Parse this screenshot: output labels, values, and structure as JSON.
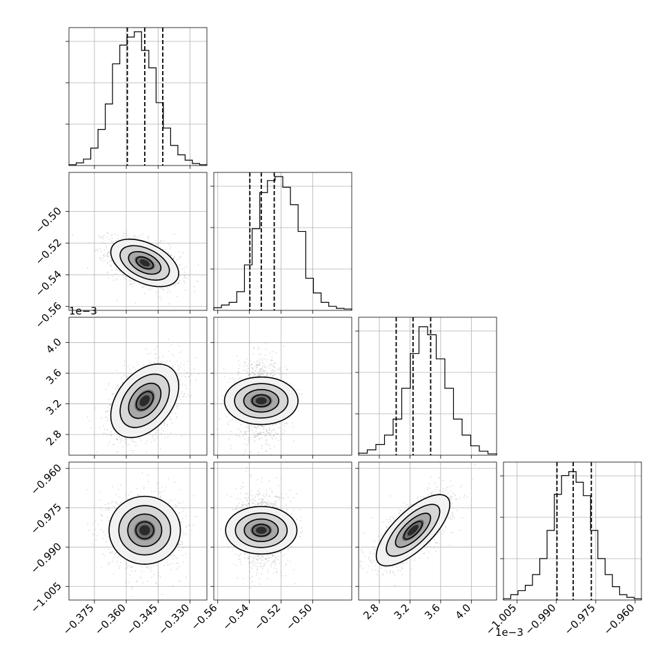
{
  "chart_data": {
    "type": "corner",
    "grid": true,
    "n_params": 4,
    "params": [
      {
        "range": [
          -0.387,
          -0.322
        ],
        "ticks": [
          -0.375,
          -0.36,
          -0.345,
          -0.33
        ],
        "tick_labels": [
          "−0.375",
          "−0.360",
          "−0.345",
          "−0.330"
        ],
        "offset_label": "",
        "quantiles": [
          -0.3595,
          -0.3513,
          -0.3428
        ],
        "histogram": [
          0.006,
          0.02,
          0.048,
          0.13,
          0.27,
          0.46,
          0.76,
          0.9,
          0.96,
          1.0,
          0.86,
          0.73,
          0.47,
          0.28,
          0.15,
          0.08,
          0.04,
          0.015,
          0.006
        ]
      },
      {
        "range": [
          -0.5625,
          -0.4753
        ],
        "ticks": [
          -0.56,
          -0.54,
          -0.52,
          -0.5
        ],
        "tick_labels": [
          "−0.56",
          "−0.54",
          "−0.52",
          "−0.50"
        ],
        "offset_label": "",
        "quantiles": [
          -0.5397,
          -0.5325,
          -0.5243
        ],
        "histogram": [
          0.02,
          0.04,
          0.06,
          0.14,
          0.34,
          0.61,
          0.88,
          0.97,
          1.0,
          0.92,
          0.79,
          0.59,
          0.24,
          0.13,
          0.06,
          0.03,
          0.015,
          0.01
        ]
      },
      {
        "range": [
          2.53,
          4.33
        ],
        "ticks": [
          2.8,
          3.2,
          3.6,
          4.0
        ],
        "tick_labels": [
          "2.8",
          "3.2",
          "3.6",
          "4.0"
        ],
        "offset_label": "1e−3",
        "quantiles": [
          3.02,
          3.24,
          3.47
        ],
        "histogram": [
          0.015,
          0.04,
          0.08,
          0.15,
          0.27,
          0.5,
          0.76,
          0.96,
          0.9,
          0.72,
          0.5,
          0.27,
          0.15,
          0.07,
          0.03,
          0.01
        ]
      },
      {
        "range": [
          -1.0102,
          -0.9576
        ],
        "ticks": [
          -1.005,
          -0.99,
          -0.975,
          -0.96
        ],
        "tick_labels": [
          "−1.005",
          "−0.990",
          "−0.975",
          "−0.960"
        ],
        "offset_label": "",
        "quantiles": [
          -0.9898,
          -0.9836,
          -0.9767
        ],
        "histogram": [
          0.01,
          0.04,
          0.07,
          0.11,
          0.19,
          0.31,
          0.52,
          0.79,
          0.93,
          0.96,
          0.88,
          0.78,
          0.52,
          0.31,
          0.19,
          0.1,
          0.04,
          0.02,
          0.01
        ]
      }
    ],
    "pairs": [
      {
        "x": 0,
        "y": 1,
        "center": [
          -0.3513,
          -0.5325
        ],
        "sd": [
          0.008,
          0.0075
        ],
        "rho": -0.45
      },
      {
        "x": 0,
        "y": 2,
        "center": [
          -0.3513,
          3.24
        ],
        "sd": [
          0.008,
          0.24
        ],
        "rho": 0.4
      },
      {
        "x": 1,
        "y": 2,
        "center": [
          -0.5325,
          3.24
        ],
        "sd": [
          0.0075,
          0.24
        ],
        "rho": 0.0
      },
      {
        "x": 0,
        "y": 3,
        "center": [
          -0.3513,
          -0.9836
        ],
        "sd": [
          0.008,
          0.0068
        ],
        "rho": 0.0
      },
      {
        "x": 1,
        "y": 3,
        "center": [
          -0.5325,
          -0.9836
        ],
        "sd": [
          0.0075,
          0.0068
        ],
        "rho": 0.0
      },
      {
        "x": 2,
        "y": 3,
        "center": [
          3.24,
          -0.9836
        ],
        "sd": [
          0.24,
          0.0068
        ],
        "rho": 0.72
      }
    ]
  }
}
